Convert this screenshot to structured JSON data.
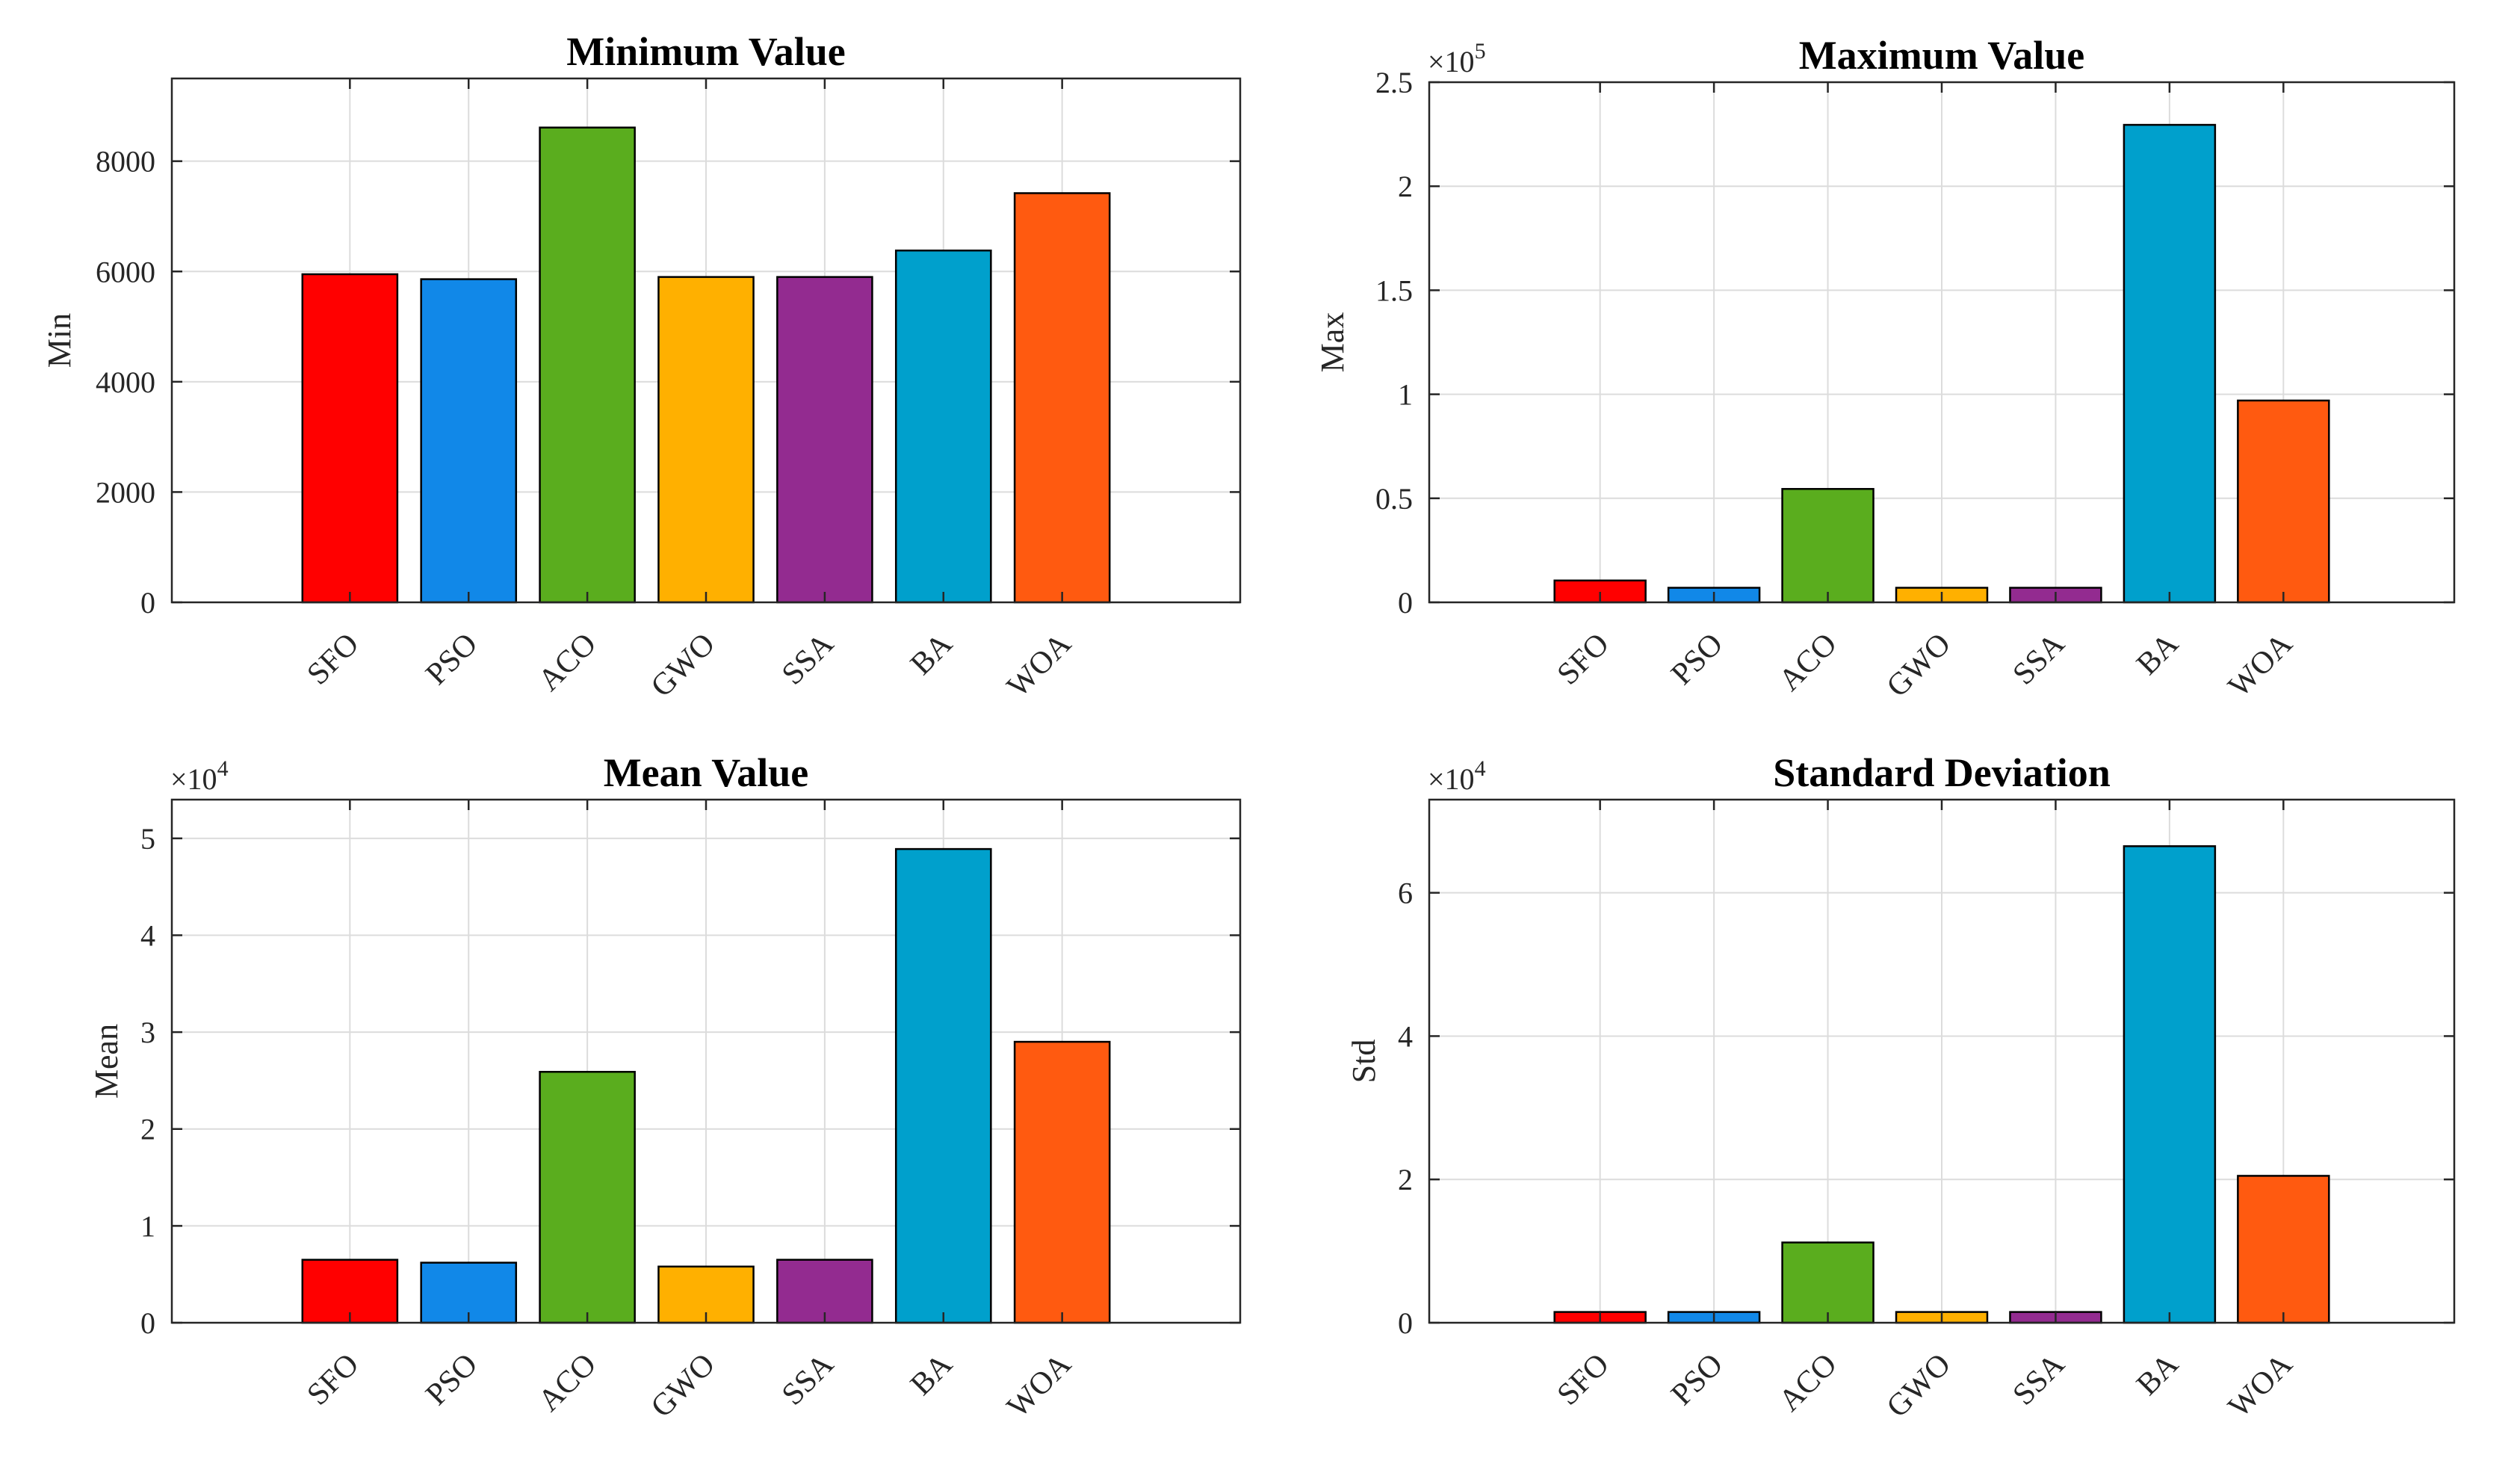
{
  "chart_data": [
    {
      "type": "bar",
      "title": "Minimum Value",
      "ylabel": "Min",
      "xlabel": "",
      "exponent": null,
      "categories": [
        "SFO",
        "PSO",
        "ACO",
        "GWO",
        "SSA",
        "BA",
        "WOA"
      ],
      "values": [
        5950,
        5860,
        8610,
        5900,
        5900,
        6380,
        7420
      ],
      "colors": [
        "#ff0000",
        "#1188e8",
        "#5aad1e",
        "#ffb000",
        "#932b90",
        "#00a0cc",
        "#ff5a10"
      ],
      "ylim": [
        0,
        9500
      ],
      "yticks": [
        0,
        2000,
        4000,
        6000,
        8000
      ],
      "ytick_labels": [
        "0",
        "2000",
        "4000",
        "6000",
        "8000"
      ],
      "grid": true
    },
    {
      "type": "bar",
      "title": "Maximum Value",
      "ylabel": "Max",
      "xlabel": "",
      "exponent": {
        "base": "×10",
        "power": "5"
      },
      "categories": [
        "SFO",
        "PSO",
        "ACO",
        "GWO",
        "SSA",
        "BA",
        "WOA"
      ],
      "values": [
        10500,
        7000,
        54500,
        7000,
        7000,
        229500,
        97000
      ],
      "colors": [
        "#ff0000",
        "#1188e8",
        "#5aad1e",
        "#ffb000",
        "#932b90",
        "#00a0cc",
        "#ff5a10"
      ],
      "ylim": [
        0,
        250000
      ],
      "yticks": [
        0,
        50000,
        100000,
        150000,
        200000,
        250000
      ],
      "ytick_labels": [
        "0",
        "0.5",
        "1",
        "1.5",
        "2",
        "2.5"
      ],
      "grid": true
    },
    {
      "type": "bar",
      "title": "Mean Value",
      "ylabel": "Mean",
      "xlabel": "",
      "exponent": {
        "base": "×10",
        "power": "4"
      },
      "categories": [
        "SFO",
        "PSO",
        "ACO",
        "GWO",
        "SSA",
        "BA",
        "WOA"
      ],
      "values": [
        6500,
        6200,
        25900,
        5800,
        6500,
        48900,
        29000
      ],
      "colors": [
        "#ff0000",
        "#1188e8",
        "#5aad1e",
        "#ffb000",
        "#932b90",
        "#00a0cc",
        "#ff5a10"
      ],
      "ylim": [
        0,
        54000
      ],
      "yticks": [
        0,
        10000,
        20000,
        30000,
        40000,
        50000
      ],
      "ytick_labels": [
        "0",
        "1",
        "2",
        "3",
        "4",
        "5"
      ],
      "grid": true
    },
    {
      "type": "bar",
      "title": "Standard Deviation",
      "ylabel": "Std",
      "xlabel": "",
      "exponent": {
        "base": "×10",
        "power": "4"
      },
      "categories": [
        "SFO",
        "PSO",
        "ACO",
        "GWO",
        "SSA",
        "BA",
        "WOA"
      ],
      "values": [
        1500,
        1500,
        11200,
        1500,
        1500,
        66500,
        20500
      ],
      "colors": [
        "#ff0000",
        "#1188e8",
        "#5aad1e",
        "#ffb000",
        "#932b90",
        "#00a0cc",
        "#ff5a10"
      ],
      "ylim": [
        0,
        73000
      ],
      "yticks": [
        0,
        20000,
        40000,
        60000
      ],
      "ytick_labels": [
        "0",
        "2",
        "4",
        "6"
      ],
      "grid": true
    }
  ]
}
